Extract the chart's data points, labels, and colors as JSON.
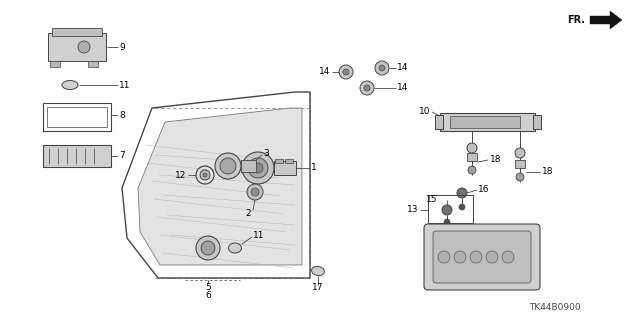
{
  "bg_color": "#ffffff",
  "lc": "#444444",
  "lc2": "#888888",
  "diagram_code": "TK44B0900",
  "figsize": [
    6.4,
    3.19
  ],
  "dpi": 100,
  "fs": 6.5
}
